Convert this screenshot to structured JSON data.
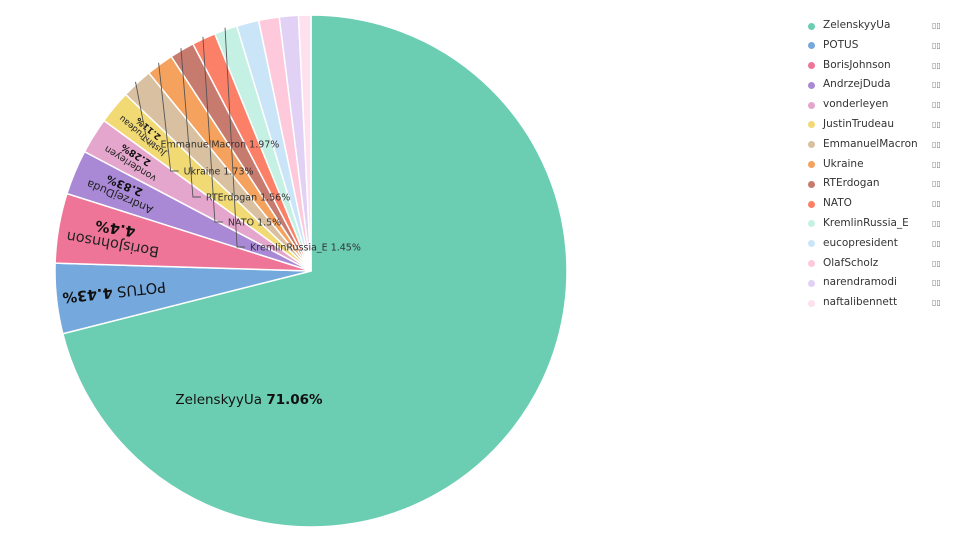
{
  "chart_data": {
    "type": "pie",
    "slices": [
      {
        "label": "ZelenskyyUa",
        "value": 71.06,
        "color": "#6bcdb2"
      },
      {
        "label": "POTUS",
        "value": 4.43,
        "color": "#75a8dc"
      },
      {
        "label": "BorisJohnson",
        "value": 4.4,
        "color": "#ee7598"
      },
      {
        "label": "AndrzejDuda",
        "value": 2.83,
        "color": "#a989d6"
      },
      {
        "label": "vonderleyen",
        "value": 2.28,
        "color": "#e5a6cd"
      },
      {
        "label": "JustinTrudeau",
        "value": 2.11,
        "color": "#f1d974"
      },
      {
        "label": "EmmanuelMacron",
        "value": 1.97,
        "color": "#d8c0a0"
      },
      {
        "label": "Ukraine",
        "value": 1.73,
        "color": "#f5a25e"
      },
      {
        "label": "RTErdogan",
        "value": 1.56,
        "color": "#c77b6e"
      },
      {
        "label": "NATO",
        "value": 1.5,
        "color": "#fb8067"
      },
      {
        "label": "KremlinRussia_E",
        "value": 1.45,
        "color": "#c5f1e4"
      },
      {
        "label": "eucopresident",
        "value": 1.4,
        "color": "#cae4f8"
      },
      {
        "label": "OlafScholz",
        "value": 1.3,
        "color": "#fec9db"
      },
      {
        "label": "narendramodi",
        "value": 1.2,
        "color": "#e0d1f5"
      },
      {
        "label": "naftalibennett",
        "value": 0.78,
        "color": "#fee0ee"
      }
    ],
    "legend": {
      "position": "top-right",
      "value_glyph": "▯▯"
    },
    "title": "",
    "xlabel": "",
    "ylabel": ""
  }
}
